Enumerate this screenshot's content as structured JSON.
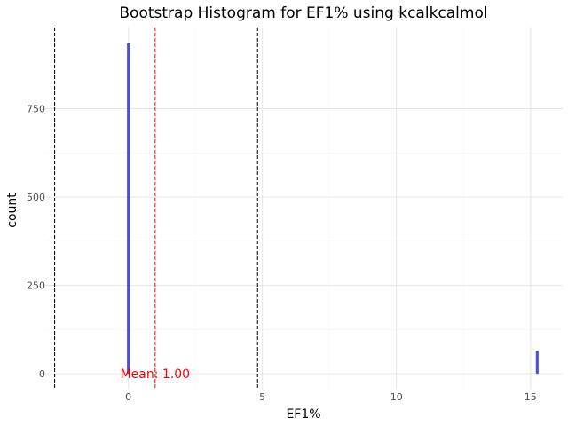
{
  "chart_data": {
    "type": "bar",
    "title": "Bootstrap Histogram for EF1% using kcalkcalmol",
    "xlabel": "EF1%",
    "ylabel": "count",
    "xlim": [
      -3.1,
      16.2
    ],
    "ylim": [
      -45,
      980
    ],
    "x_ticks": [
      0,
      5,
      10,
      15
    ],
    "x_tick_labels": [
      "0",
      "5",
      "10",
      "15"
    ],
    "y_ticks": [
      0,
      250,
      500,
      750
    ],
    "y_tick_labels": [
      "0",
      "250",
      "500",
      "750"
    ],
    "bins": [
      {
        "x": 0.0,
        "count": 935
      },
      {
        "x": 15.25,
        "count": 65
      }
    ],
    "bin_width": 0.1,
    "bar_color": "#4b4bdf",
    "reference_lines": [
      {
        "x": -2.75,
        "color": "#000000",
        "style": "dashed"
      },
      {
        "x": 1.0,
        "color": "#ff0000",
        "style": "dashed"
      },
      {
        "x": 4.82,
        "color": "#000000",
        "style": "dashed"
      }
    ],
    "annotation": {
      "text": "Mean: 1.00",
      "x": 1.0,
      "y": 0,
      "color": "#ff0000"
    },
    "grid": true,
    "legend": "none"
  }
}
